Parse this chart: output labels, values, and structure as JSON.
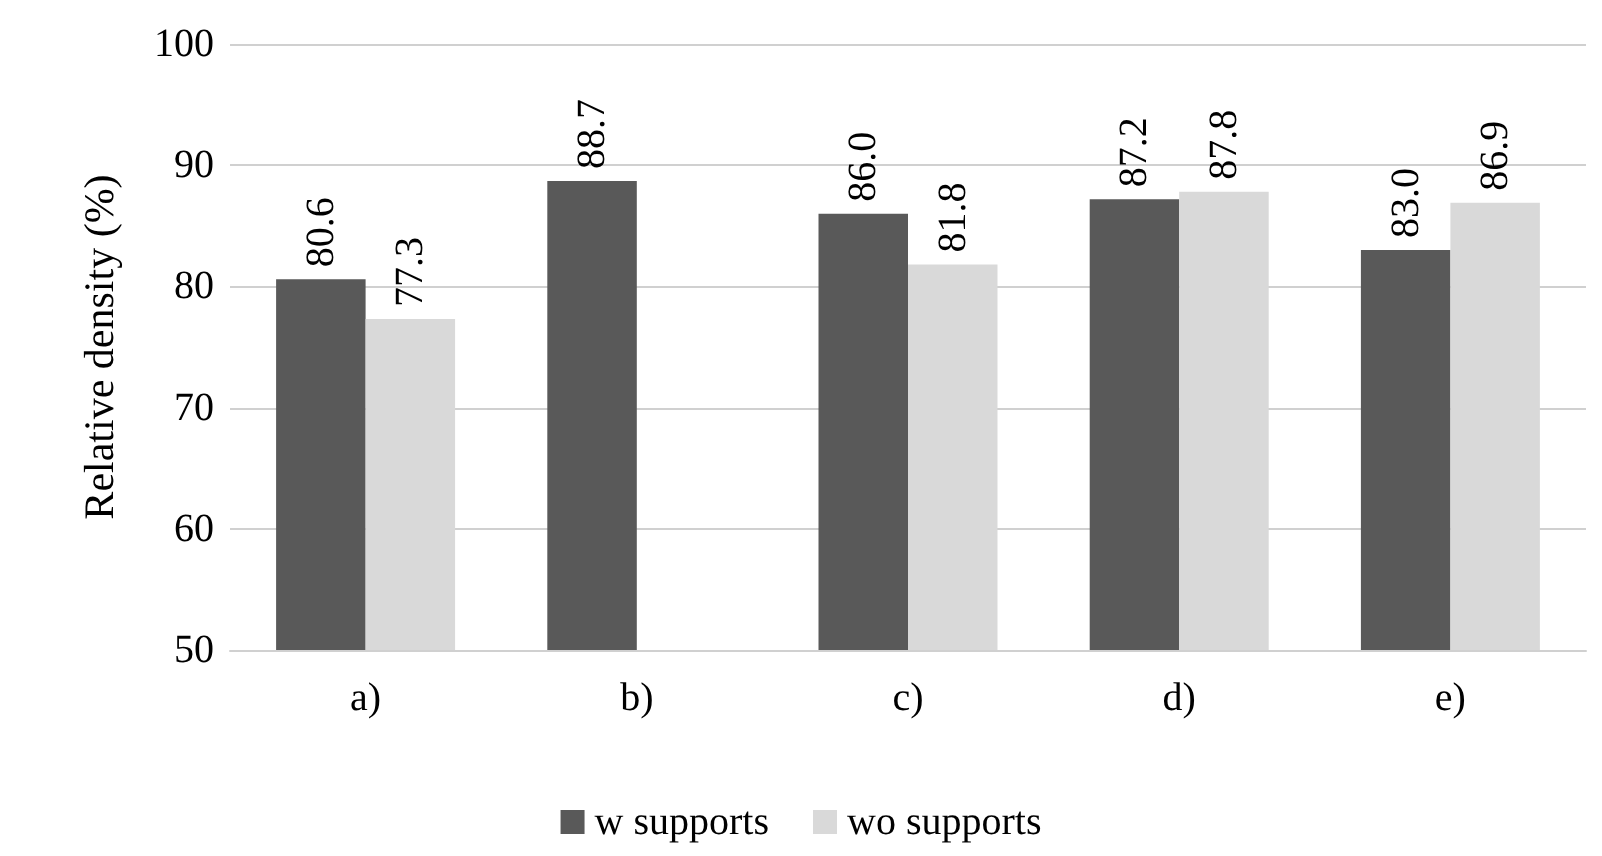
{
  "chart_data": {
    "type": "bar",
    "ylabel": "Relative density (%)",
    "categories": [
      "a)",
      "b)",
      "c)",
      "d)",
      "e)"
    ],
    "series": [
      {
        "name": "w supports",
        "color": "#595959",
        "values": [
          80.6,
          88.7,
          86.0,
          87.2,
          83.0
        ],
        "value_labels": [
          "80.6",
          "88.7",
          "86.0",
          "87.2",
          "83.0"
        ]
      },
      {
        "name": "wo supports",
        "color": "#d9d9d9",
        "values": [
          77.3,
          null,
          81.8,
          87.8,
          86.9
        ],
        "value_labels": [
          "77.3",
          null,
          "81.8",
          "87.8",
          "86.9"
        ]
      }
    ],
    "ylim": [
      50,
      100
    ],
    "yticks": [
      50,
      60,
      70,
      80,
      90,
      100
    ],
    "grid": "y",
    "legend": "bottom"
  }
}
